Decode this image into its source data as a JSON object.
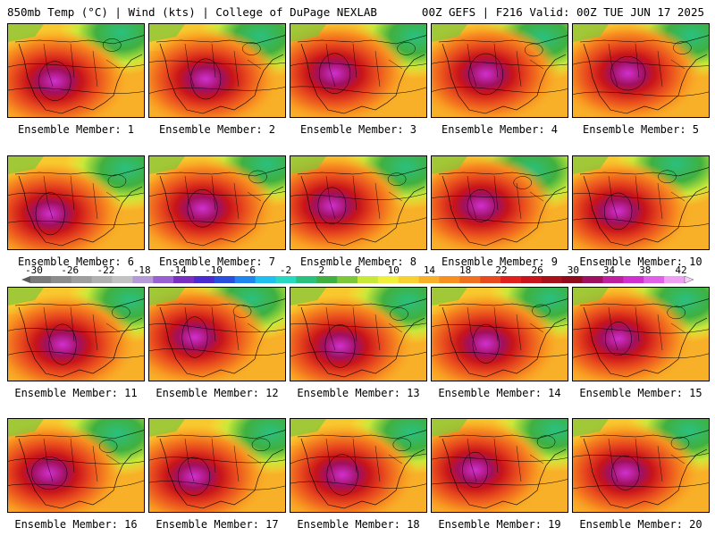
{
  "header": {
    "left_title": "850mb Temp (°C) | Wind (kts) | College of DuPage NEXLAB",
    "right_title": "00Z GEFS | F216 Valid: 00Z TUE JUN 17 2025"
  },
  "panels": [
    {
      "label": "Ensemble Member: 1"
    },
    {
      "label": "Ensemble Member: 2"
    },
    {
      "label": "Ensemble Member: 3"
    },
    {
      "label": "Ensemble Member: 4"
    },
    {
      "label": "Ensemble Member: 5"
    },
    {
      "label": "Ensemble Member: 6"
    },
    {
      "label": "Ensemble Member: 7"
    },
    {
      "label": "Ensemble Member: 8"
    },
    {
      "label": "Ensemble Member: 9"
    },
    {
      "label": "Ensemble Member: 10"
    },
    {
      "label": "Ensemble Member: 11"
    },
    {
      "label": "Ensemble Member: 12"
    },
    {
      "label": "Ensemble Member: 13"
    },
    {
      "label": "Ensemble Member: 14"
    },
    {
      "label": "Ensemble Member: 15"
    },
    {
      "label": "Ensemble Member: 16"
    },
    {
      "label": "Ensemble Member: 17"
    },
    {
      "label": "Ensemble Member: 18"
    },
    {
      "label": "Ensemble Member: 19"
    },
    {
      "label": "Ensemble Member: 20"
    }
  ],
  "colorbar": {
    "labels": [
      "-30",
      "-26",
      "-22",
      "-18",
      "-14",
      "-10",
      "-6",
      "-2",
      "2",
      "6",
      "10",
      "14",
      "18",
      "22",
      "26",
      "30",
      "34",
      "38",
      "42"
    ],
    "colors": [
      "#7a7a7a",
      "#8c8c8c",
      "#9e9e9e",
      "#b0b0b0",
      "#c2c2c2",
      "#b69ad8",
      "#9a5fd0",
      "#7a2fc0",
      "#4b2bd0",
      "#2a4fe0",
      "#1f86f0",
      "#1fc0f0",
      "#28d8c0",
      "#2ac080",
      "#40b040",
      "#7cc83a",
      "#c8e83a",
      "#f0f03a",
      "#f8d030",
      "#f8b028",
      "#f89020",
      "#f07020",
      "#e84a1e",
      "#e0201c",
      "#c8141a",
      "#a8101a",
      "#900c1c",
      "#a01060",
      "#c020a0",
      "#d030d0",
      "#e060e8",
      "#f0a0f4"
    ]
  }
}
